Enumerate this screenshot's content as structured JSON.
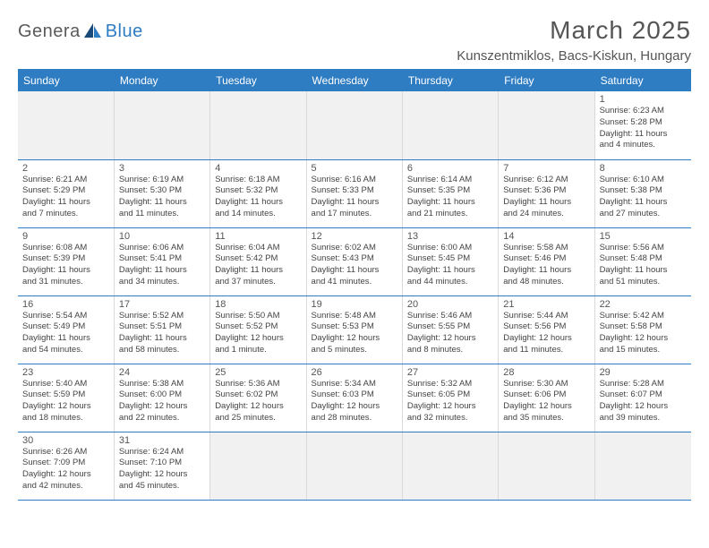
{
  "logo": {
    "main": "Genera",
    "blue": "Blue"
  },
  "title": "March 2025",
  "location": "Kunszentmiklos, Bacs-Kiskun, Hungary",
  "days_of_week": [
    "Sunday",
    "Monday",
    "Tuesday",
    "Wednesday",
    "Thursday",
    "Friday",
    "Saturday"
  ],
  "colors": {
    "header_bg": "#2e7cc2",
    "header_text": "#ffffff",
    "border": "#2e7cc2",
    "cell_border": "#d9d9d9",
    "grey_bg": "#f1f1f1",
    "text": "#444444"
  },
  "weeks": [
    [
      {
        "empty": true
      },
      {
        "empty": true
      },
      {
        "empty": true
      },
      {
        "empty": true
      },
      {
        "empty": true
      },
      {
        "empty": true
      },
      {
        "day": "1",
        "sunrise": "Sunrise: 6:23 AM",
        "sunset": "Sunset: 5:28 PM",
        "daylight1": "Daylight: 11 hours",
        "daylight2": "and 4 minutes."
      }
    ],
    [
      {
        "day": "2",
        "sunrise": "Sunrise: 6:21 AM",
        "sunset": "Sunset: 5:29 PM",
        "daylight1": "Daylight: 11 hours",
        "daylight2": "and 7 minutes."
      },
      {
        "day": "3",
        "sunrise": "Sunrise: 6:19 AM",
        "sunset": "Sunset: 5:30 PM",
        "daylight1": "Daylight: 11 hours",
        "daylight2": "and 11 minutes."
      },
      {
        "day": "4",
        "sunrise": "Sunrise: 6:18 AM",
        "sunset": "Sunset: 5:32 PM",
        "daylight1": "Daylight: 11 hours",
        "daylight2": "and 14 minutes."
      },
      {
        "day": "5",
        "sunrise": "Sunrise: 6:16 AM",
        "sunset": "Sunset: 5:33 PM",
        "daylight1": "Daylight: 11 hours",
        "daylight2": "and 17 minutes."
      },
      {
        "day": "6",
        "sunrise": "Sunrise: 6:14 AM",
        "sunset": "Sunset: 5:35 PM",
        "daylight1": "Daylight: 11 hours",
        "daylight2": "and 21 minutes."
      },
      {
        "day": "7",
        "sunrise": "Sunrise: 6:12 AM",
        "sunset": "Sunset: 5:36 PM",
        "daylight1": "Daylight: 11 hours",
        "daylight2": "and 24 minutes."
      },
      {
        "day": "8",
        "sunrise": "Sunrise: 6:10 AM",
        "sunset": "Sunset: 5:38 PM",
        "daylight1": "Daylight: 11 hours",
        "daylight2": "and 27 minutes."
      }
    ],
    [
      {
        "day": "9",
        "sunrise": "Sunrise: 6:08 AM",
        "sunset": "Sunset: 5:39 PM",
        "daylight1": "Daylight: 11 hours",
        "daylight2": "and 31 minutes."
      },
      {
        "day": "10",
        "sunrise": "Sunrise: 6:06 AM",
        "sunset": "Sunset: 5:41 PM",
        "daylight1": "Daylight: 11 hours",
        "daylight2": "and 34 minutes."
      },
      {
        "day": "11",
        "sunrise": "Sunrise: 6:04 AM",
        "sunset": "Sunset: 5:42 PM",
        "daylight1": "Daylight: 11 hours",
        "daylight2": "and 37 minutes."
      },
      {
        "day": "12",
        "sunrise": "Sunrise: 6:02 AM",
        "sunset": "Sunset: 5:43 PM",
        "daylight1": "Daylight: 11 hours",
        "daylight2": "and 41 minutes."
      },
      {
        "day": "13",
        "sunrise": "Sunrise: 6:00 AM",
        "sunset": "Sunset: 5:45 PM",
        "daylight1": "Daylight: 11 hours",
        "daylight2": "and 44 minutes."
      },
      {
        "day": "14",
        "sunrise": "Sunrise: 5:58 AM",
        "sunset": "Sunset: 5:46 PM",
        "daylight1": "Daylight: 11 hours",
        "daylight2": "and 48 minutes."
      },
      {
        "day": "15",
        "sunrise": "Sunrise: 5:56 AM",
        "sunset": "Sunset: 5:48 PM",
        "daylight1": "Daylight: 11 hours",
        "daylight2": "and 51 minutes."
      }
    ],
    [
      {
        "day": "16",
        "sunrise": "Sunrise: 5:54 AM",
        "sunset": "Sunset: 5:49 PM",
        "daylight1": "Daylight: 11 hours",
        "daylight2": "and 54 minutes."
      },
      {
        "day": "17",
        "sunrise": "Sunrise: 5:52 AM",
        "sunset": "Sunset: 5:51 PM",
        "daylight1": "Daylight: 11 hours",
        "daylight2": "and 58 minutes."
      },
      {
        "day": "18",
        "sunrise": "Sunrise: 5:50 AM",
        "sunset": "Sunset: 5:52 PM",
        "daylight1": "Daylight: 12 hours",
        "daylight2": "and 1 minute."
      },
      {
        "day": "19",
        "sunrise": "Sunrise: 5:48 AM",
        "sunset": "Sunset: 5:53 PM",
        "daylight1": "Daylight: 12 hours",
        "daylight2": "and 5 minutes."
      },
      {
        "day": "20",
        "sunrise": "Sunrise: 5:46 AM",
        "sunset": "Sunset: 5:55 PM",
        "daylight1": "Daylight: 12 hours",
        "daylight2": "and 8 minutes."
      },
      {
        "day": "21",
        "sunrise": "Sunrise: 5:44 AM",
        "sunset": "Sunset: 5:56 PM",
        "daylight1": "Daylight: 12 hours",
        "daylight2": "and 11 minutes."
      },
      {
        "day": "22",
        "sunrise": "Sunrise: 5:42 AM",
        "sunset": "Sunset: 5:58 PM",
        "daylight1": "Daylight: 12 hours",
        "daylight2": "and 15 minutes."
      }
    ],
    [
      {
        "day": "23",
        "sunrise": "Sunrise: 5:40 AM",
        "sunset": "Sunset: 5:59 PM",
        "daylight1": "Daylight: 12 hours",
        "daylight2": "and 18 minutes."
      },
      {
        "day": "24",
        "sunrise": "Sunrise: 5:38 AM",
        "sunset": "Sunset: 6:00 PM",
        "daylight1": "Daylight: 12 hours",
        "daylight2": "and 22 minutes."
      },
      {
        "day": "25",
        "sunrise": "Sunrise: 5:36 AM",
        "sunset": "Sunset: 6:02 PM",
        "daylight1": "Daylight: 12 hours",
        "daylight2": "and 25 minutes."
      },
      {
        "day": "26",
        "sunrise": "Sunrise: 5:34 AM",
        "sunset": "Sunset: 6:03 PM",
        "daylight1": "Daylight: 12 hours",
        "daylight2": "and 28 minutes."
      },
      {
        "day": "27",
        "sunrise": "Sunrise: 5:32 AM",
        "sunset": "Sunset: 6:05 PM",
        "daylight1": "Daylight: 12 hours",
        "daylight2": "and 32 minutes."
      },
      {
        "day": "28",
        "sunrise": "Sunrise: 5:30 AM",
        "sunset": "Sunset: 6:06 PM",
        "daylight1": "Daylight: 12 hours",
        "daylight2": "and 35 minutes."
      },
      {
        "day": "29",
        "sunrise": "Sunrise: 5:28 AM",
        "sunset": "Sunset: 6:07 PM",
        "daylight1": "Daylight: 12 hours",
        "daylight2": "and 39 minutes."
      }
    ],
    [
      {
        "day": "30",
        "sunrise": "Sunrise: 6:26 AM",
        "sunset": "Sunset: 7:09 PM",
        "daylight1": "Daylight: 12 hours",
        "daylight2": "and 42 minutes."
      },
      {
        "day": "31",
        "sunrise": "Sunrise: 6:24 AM",
        "sunset": "Sunset: 7:10 PM",
        "daylight1": "Daylight: 12 hours",
        "daylight2": "and 45 minutes."
      },
      {
        "empty": true
      },
      {
        "empty": true
      },
      {
        "empty": true
      },
      {
        "empty": true
      },
      {
        "empty": true
      }
    ]
  ]
}
